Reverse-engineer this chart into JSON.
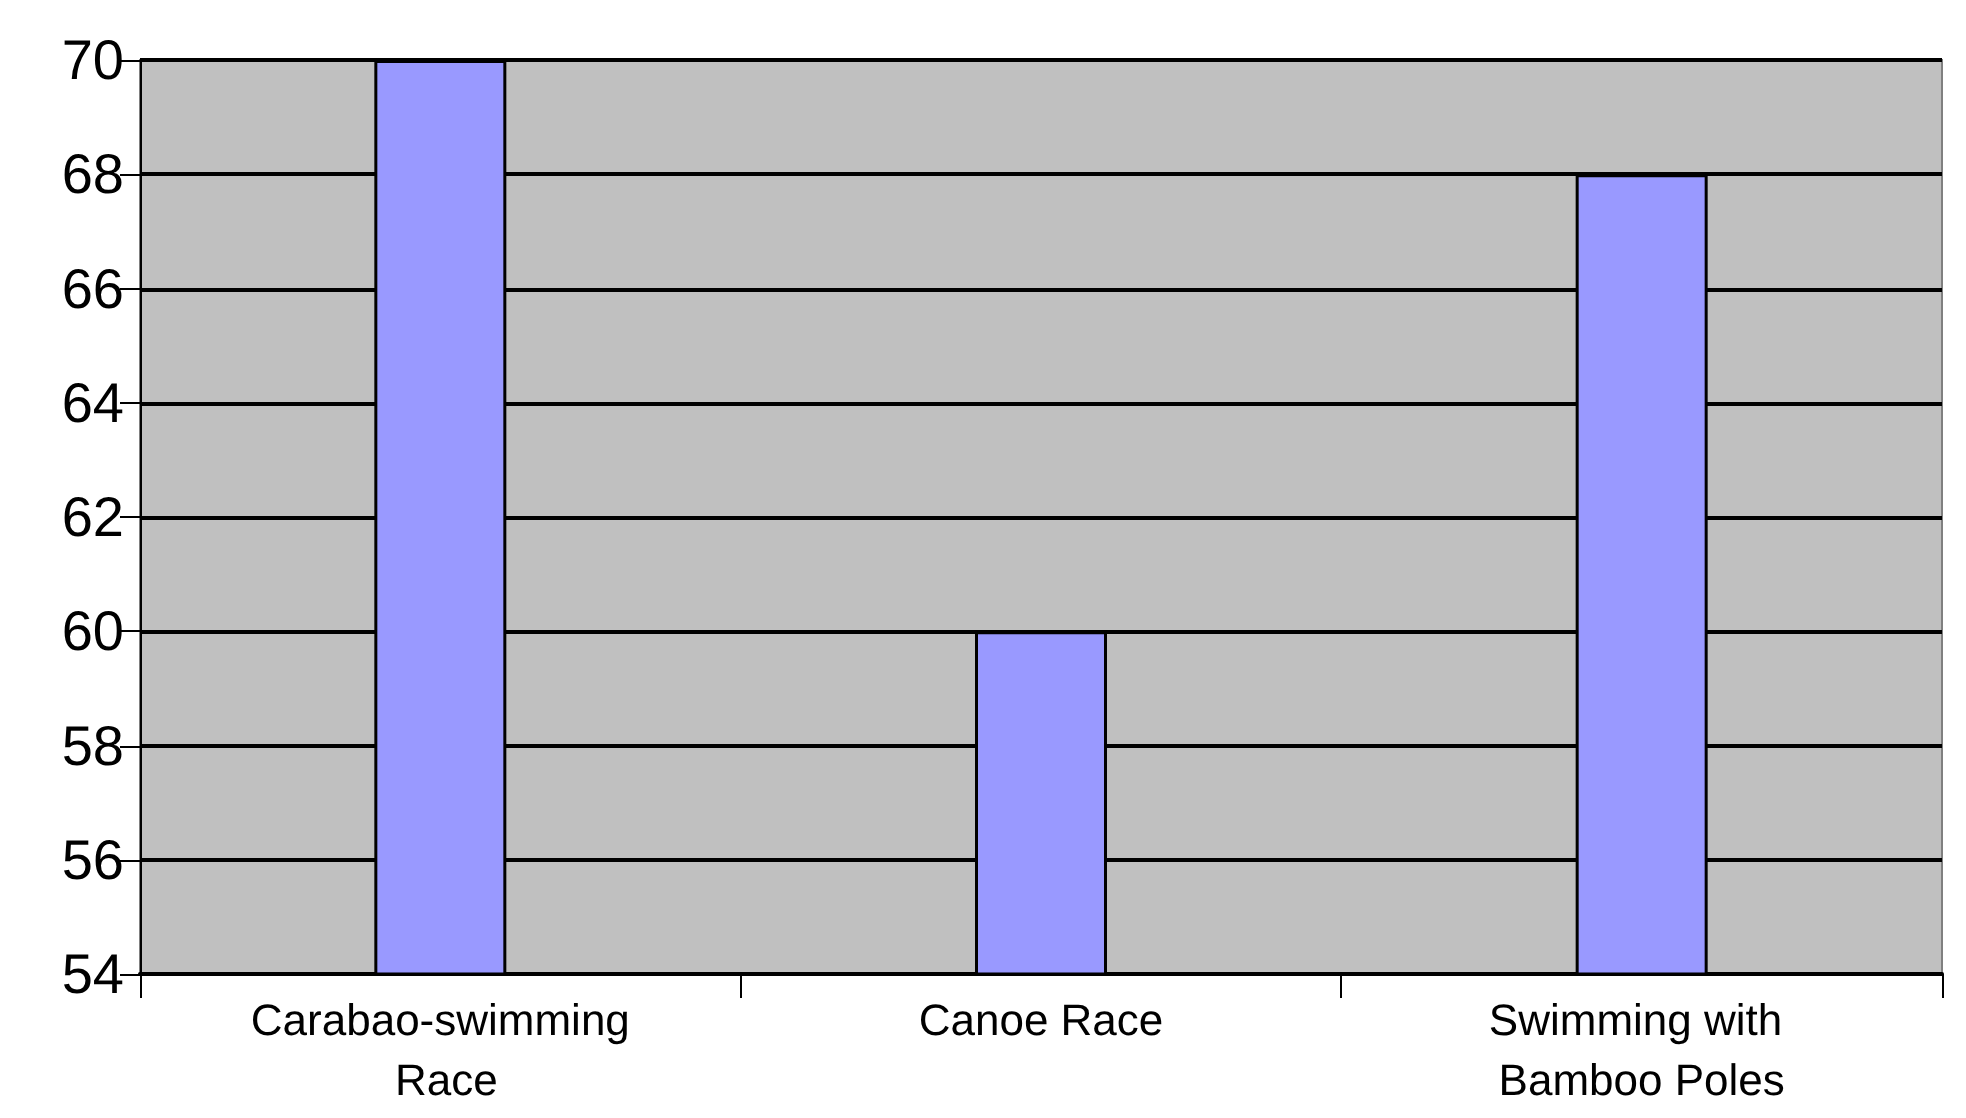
{
  "chart_data": {
    "type": "bar",
    "categories": [
      "Carabao-swimming Race",
      "Canoe Race",
      "Swimming with Bamboo Poles"
    ],
    "values": [
      70,
      60,
      68
    ],
    "color": "#9999ff",
    "ylim": [
      54,
      70
    ],
    "yticks": [
      54,
      56,
      58,
      60,
      62,
      64,
      66,
      68,
      70
    ],
    "grid": "y"
  }
}
